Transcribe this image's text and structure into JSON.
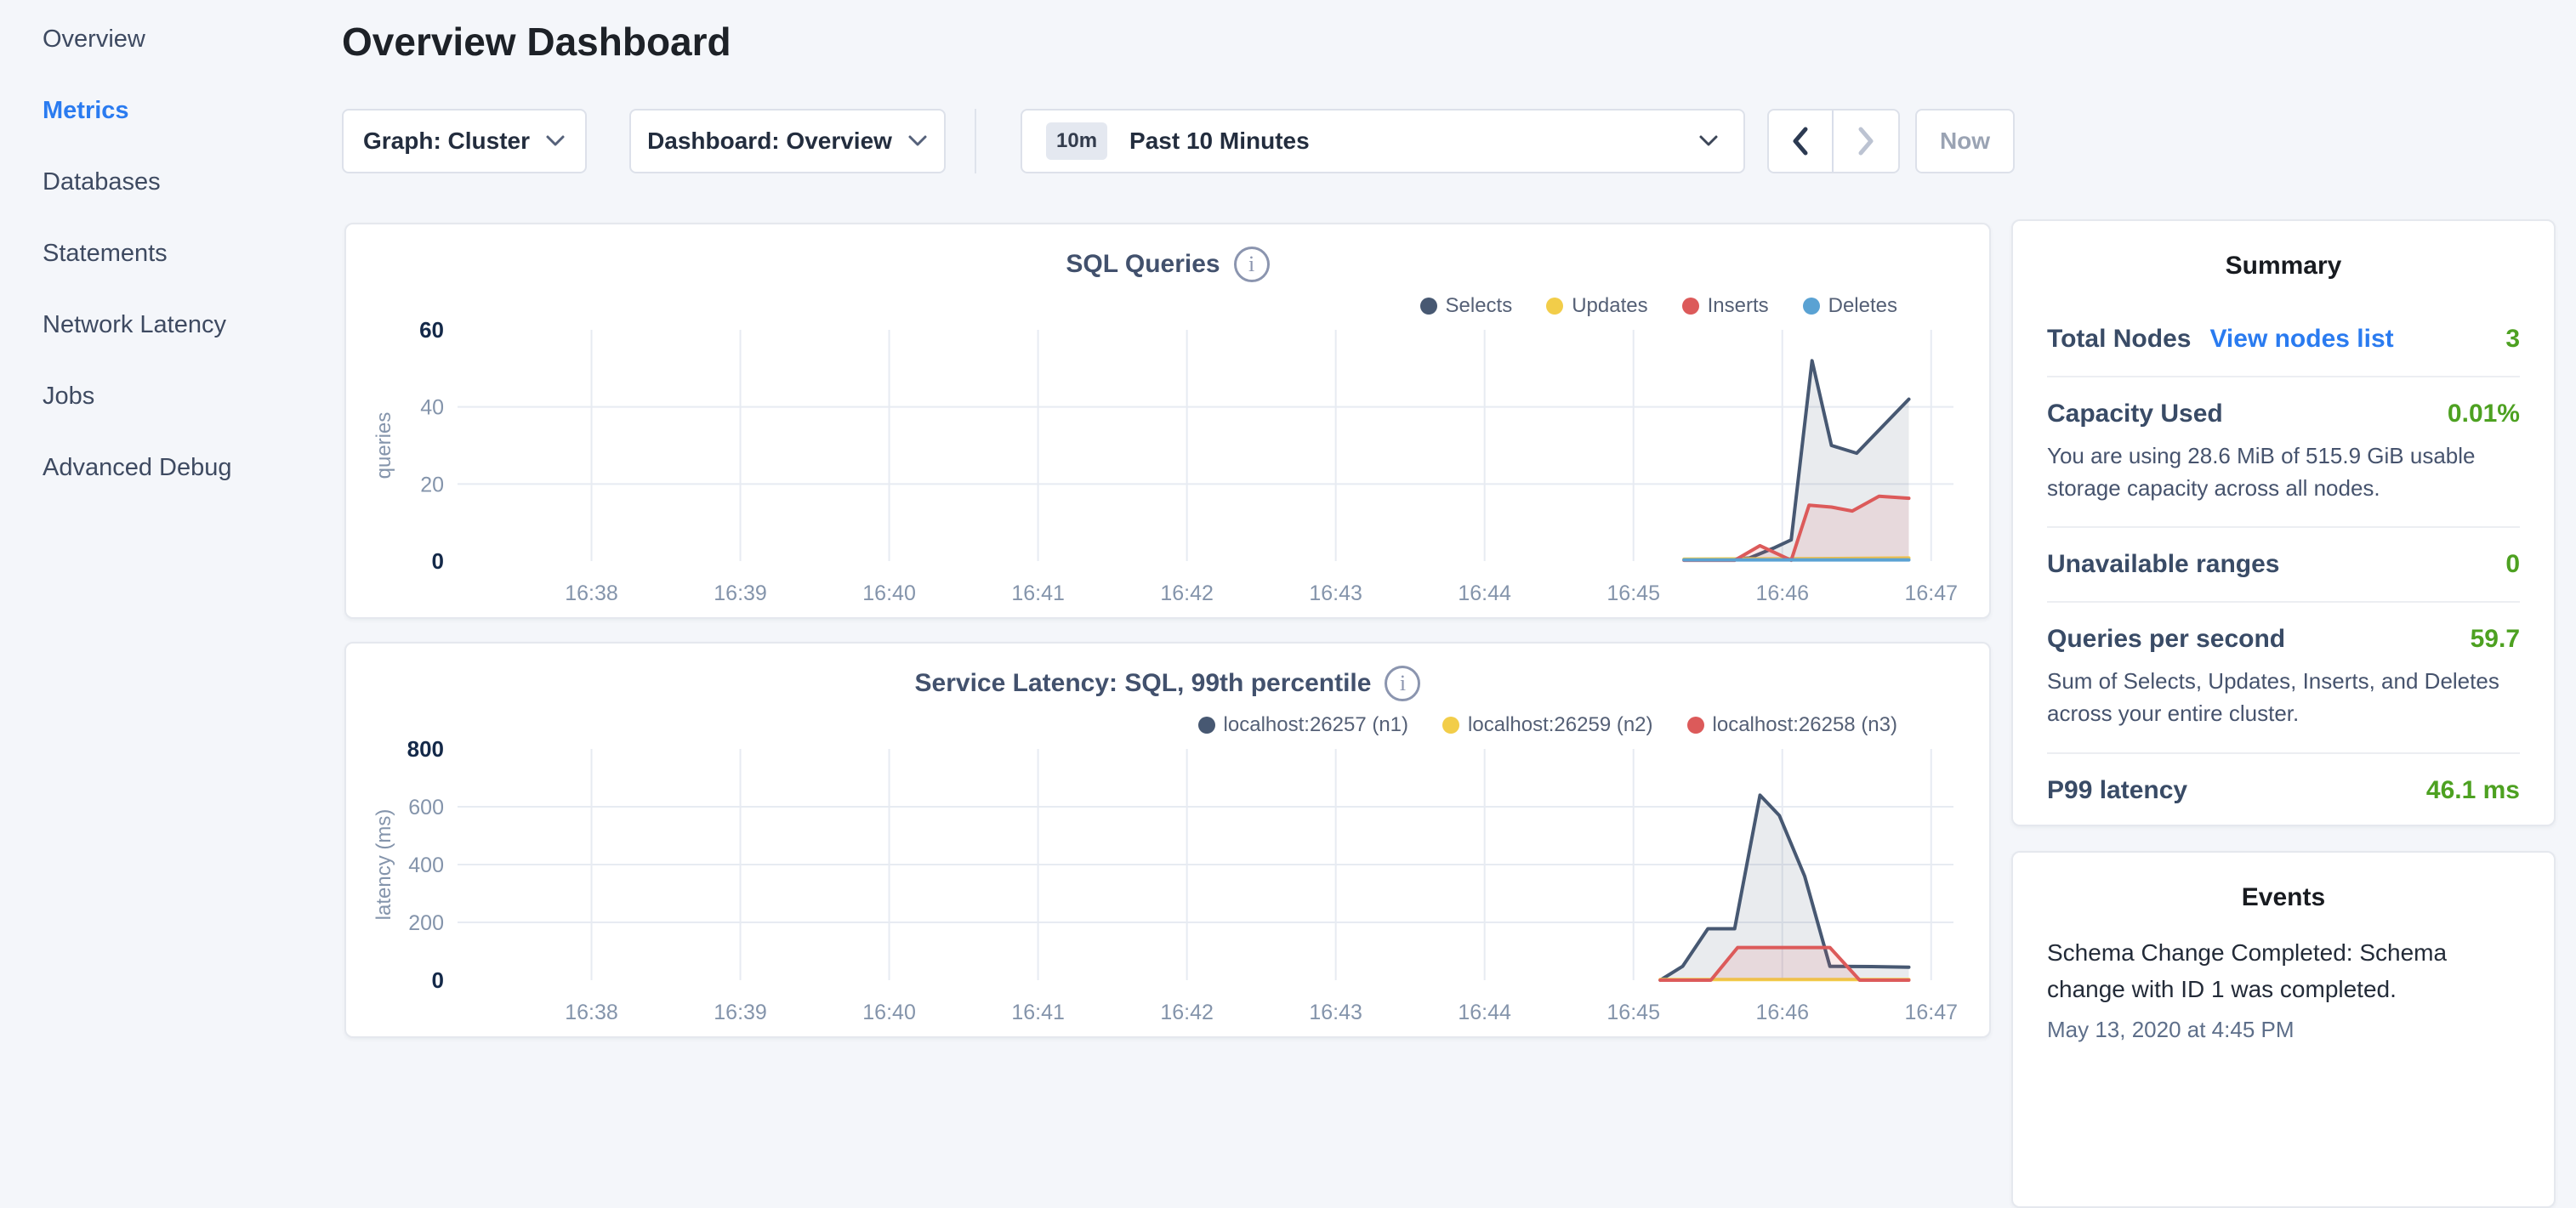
{
  "colors": {
    "accent_blue": "#2a7bf0",
    "value_green": "#4da121",
    "series_navy": "#475872",
    "series_yellow": "#f2cd49",
    "series_red": "#dc5a5a",
    "series_blue": "#5aa2d3"
  },
  "icons": {
    "dropdown_caret": "chevron-down",
    "prev": "chevron-left",
    "next": "chevron-right",
    "chart_info": "info-circle"
  },
  "sidebar": {
    "items": [
      {
        "label": "Overview",
        "active": false
      },
      {
        "label": "Metrics",
        "active": true
      },
      {
        "label": "Databases",
        "active": false
      },
      {
        "label": "Statements",
        "active": false
      },
      {
        "label": "Network Latency",
        "active": false
      },
      {
        "label": "Jobs",
        "active": false
      },
      {
        "label": "Advanced Debug",
        "active": false
      }
    ]
  },
  "header": {
    "title": "Overview Dashboard"
  },
  "toolbar": {
    "graph_dropdown": "Graph: Cluster",
    "dashboard_dropdown": "Dashboard: Overview",
    "time_window": {
      "badge": "10m",
      "label": "Past 10 Minutes"
    },
    "now_label": "Now"
  },
  "chart_data": [
    {
      "type": "area",
      "title": "SQL Queries",
      "ylabel": "queries",
      "ylim": [
        0,
        60
      ],
      "yticks": [
        0,
        20,
        40,
        60
      ],
      "x_domain": [
        37.1,
        47.15
      ],
      "xticks": [
        {
          "t": 38,
          "label": "16:38"
        },
        {
          "t": 39,
          "label": "16:39"
        },
        {
          "t": 40,
          "label": "16:40"
        },
        {
          "t": 41,
          "label": "16:41"
        },
        {
          "t": 42,
          "label": "16:42"
        },
        {
          "t": 43,
          "label": "16:43"
        },
        {
          "t": 44,
          "label": "16:44"
        },
        {
          "t": 45,
          "label": "16:45"
        },
        {
          "t": 46,
          "label": "16:46"
        },
        {
          "t": 47,
          "label": "16:47"
        }
      ],
      "grid": true,
      "legend_position": "top-right",
      "series": [
        {
          "name": "Selects",
          "color": "#475872",
          "fill": "rgba(71,88,114,0.12)",
          "points": [
            [
              45.34,
              0.3
            ],
            [
              45.6,
              0.3
            ],
            [
              45.78,
              0.8
            ],
            [
              45.95,
              3.5
            ],
            [
              46.06,
              5.5
            ],
            [
              46.2,
              52
            ],
            [
              46.33,
              30
            ],
            [
              46.5,
              28
            ],
            [
              46.85,
              42
            ]
          ]
        },
        {
          "name": "Updates",
          "color": "#f2cd49",
          "fill": null,
          "points": [
            [
              45.34,
              0.5
            ],
            [
              46.1,
              0.6
            ],
            [
              46.85,
              0.8
            ]
          ]
        },
        {
          "name": "Inserts",
          "color": "#dc5a5a",
          "fill": "rgba(220,90,90,0.12)",
          "points": [
            [
              45.34,
              0.2
            ],
            [
              45.68,
              0.2
            ],
            [
              45.85,
              4
            ],
            [
              46.06,
              0.2
            ],
            [
              46.18,
              14.5
            ],
            [
              46.33,
              14
            ],
            [
              46.47,
              13
            ],
            [
              46.65,
              16.8
            ],
            [
              46.85,
              16.3
            ]
          ]
        },
        {
          "name": "Deletes",
          "color": "#5aa2d3",
          "fill": null,
          "points": [
            [
              45.34,
              0.3
            ],
            [
              46.85,
              0.3
            ]
          ]
        }
      ]
    },
    {
      "type": "area",
      "title": "Service Latency: SQL, 99th percentile",
      "ylabel": "latency (ms)",
      "ylim": [
        0,
        800
      ],
      "yticks": [
        0,
        200,
        400,
        600,
        800
      ],
      "x_domain": [
        37.1,
        47.15
      ],
      "xticks": [
        {
          "t": 38,
          "label": "16:38"
        },
        {
          "t": 39,
          "label": "16:39"
        },
        {
          "t": 40,
          "label": "16:40"
        },
        {
          "t": 41,
          "label": "16:41"
        },
        {
          "t": 42,
          "label": "16:42"
        },
        {
          "t": 43,
          "label": "16:43"
        },
        {
          "t": 44,
          "label": "16:44"
        },
        {
          "t": 45,
          "label": "16:45"
        },
        {
          "t": 46,
          "label": "16:46"
        },
        {
          "t": 47,
          "label": "16:47"
        }
      ],
      "grid": true,
      "legend_position": "top-right",
      "series": [
        {
          "name": "localhost:26257 (n1)",
          "color": "#475872",
          "fill": "rgba(71,88,114,0.12)",
          "points": [
            [
              45.18,
              0
            ],
            [
              45.33,
              48
            ],
            [
              45.5,
              178
            ],
            [
              45.68,
              178
            ],
            [
              45.85,
              640
            ],
            [
              45.98,
              570
            ],
            [
              46.15,
              360
            ],
            [
              46.32,
              48
            ],
            [
              46.6,
              47
            ],
            [
              46.85,
              45
            ]
          ]
        },
        {
          "name": "localhost:26259 (n2)",
          "color": "#f2cd49",
          "fill": null,
          "points": [
            [
              45.18,
              2
            ],
            [
              46.85,
              2
            ]
          ]
        },
        {
          "name": "localhost:26258 (n3)",
          "color": "#dc5a5a",
          "fill": "rgba(220,90,90,0.12)",
          "points": [
            [
              45.18,
              0
            ],
            [
              45.52,
              0
            ],
            [
              45.7,
              113
            ],
            [
              46.32,
              113
            ],
            [
              46.52,
              0
            ],
            [
              46.85,
              0
            ]
          ]
        }
      ]
    }
  ],
  "summary": {
    "title": "Summary",
    "rows": [
      {
        "label": "Total Nodes",
        "link": "View nodes list",
        "value": "3"
      },
      {
        "label": "Capacity Used",
        "value": "0.01%",
        "desc": "You are using 28.6 MiB of 515.9 GiB usable storage capacity across all nodes."
      },
      {
        "label": "Unavailable ranges",
        "value": "0"
      },
      {
        "label": "Queries per second",
        "value": "59.7",
        "desc": "Sum of Selects, Updates, Inserts, and Deletes across your entire cluster."
      },
      {
        "label": "P99 latency",
        "value": "46.1 ms"
      }
    ]
  },
  "events": {
    "title": "Events",
    "items": [
      {
        "message": "Schema Change Completed: Schema change with ID 1 was completed.",
        "timestamp": "May 13, 2020 at 4:45 PM"
      }
    ]
  }
}
